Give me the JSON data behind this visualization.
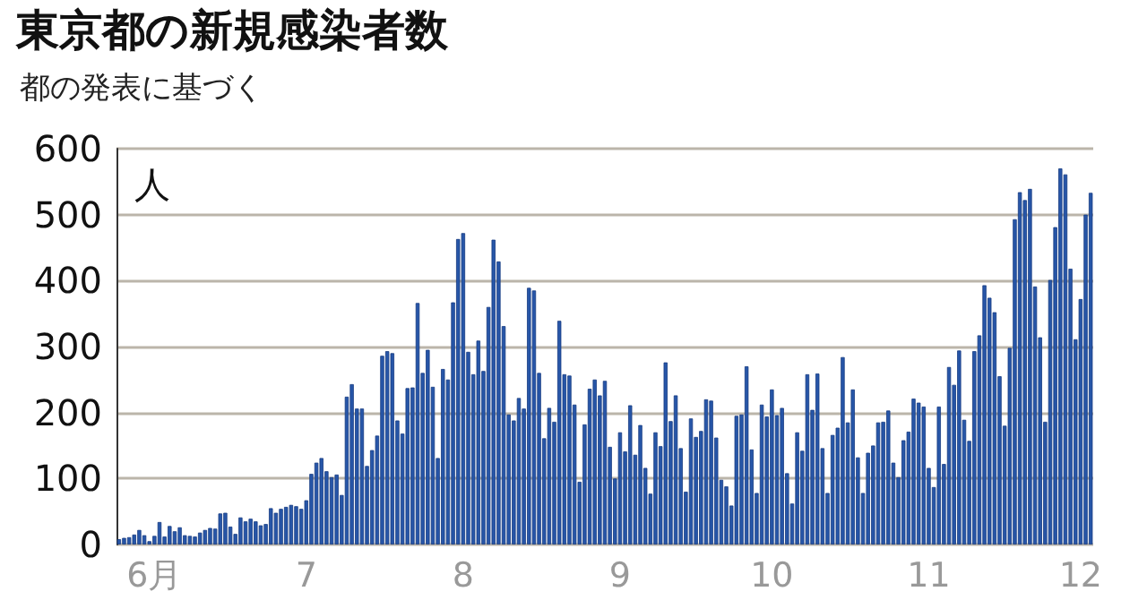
{
  "chart_data": {
    "type": "bar",
    "title": "東京都の新規感染者数",
    "subtitle": "都の発表に基づく",
    "ylabel": "人",
    "categories": [
      null,
      null,
      null,
      null,
      null,
      null,
      null,
      "6月",
      null,
      null,
      null,
      null,
      null,
      null,
      null,
      null,
      null,
      null,
      null,
      null,
      null,
      null,
      null,
      null,
      null,
      null,
      null,
      null,
      null,
      null,
      null,
      null,
      null,
      null,
      null,
      null,
      null,
      "7",
      null,
      null,
      null,
      null,
      null,
      null,
      null,
      null,
      null,
      null,
      null,
      null,
      null,
      null,
      null,
      null,
      null,
      null,
      null,
      null,
      null,
      null,
      null,
      null,
      null,
      null,
      null,
      null,
      null,
      null,
      "8",
      null,
      null,
      null,
      null,
      null,
      null,
      null,
      null,
      null,
      null,
      null,
      null,
      null,
      null,
      null,
      null,
      null,
      null,
      null,
      null,
      null,
      null,
      null,
      null,
      null,
      null,
      null,
      null,
      null,
      null,
      "9",
      null,
      null,
      null,
      null,
      null,
      null,
      null,
      null,
      null,
      null,
      null,
      null,
      null,
      null,
      null,
      null,
      null,
      null,
      null,
      null,
      null,
      null,
      null,
      null,
      null,
      null,
      null,
      null,
      null,
      "10",
      null,
      null,
      null,
      null,
      null,
      null,
      null,
      null,
      null,
      null,
      null,
      null,
      null,
      null,
      null,
      null,
      null,
      null,
      null,
      null,
      null,
      null,
      null,
      null,
      null,
      null,
      null,
      null,
      null,
      null,
      "11",
      null,
      null,
      null,
      null,
      null,
      null,
      null,
      null,
      null,
      null,
      null,
      null,
      null,
      null,
      null,
      null,
      null,
      null,
      null,
      null,
      null,
      null,
      null,
      null,
      null,
      null,
      null,
      null,
      null,
      "12",
      null,
      null
    ],
    "values": [
      8,
      10,
      11,
      15,
      22,
      14,
      5,
      13,
      34,
      12,
      28,
      20,
      26,
      14,
      13,
      12,
      18,
      22,
      25,
      24,
      47,
      48,
      27,
      16,
      41,
      35,
      39,
      35,
      29,
      31,
      55,
      48,
      54,
      57,
      60,
      58,
      54,
      67,
      107,
      124,
      131,
      111,
      102,
      106,
      75,
      224,
      243,
      206,
      206,
      119,
      143,
      165,
      286,
      293,
      290,
      188,
      168,
      237,
      238,
      366,
      260,
      295,
      239,
      131,
      266,
      250,
      367,
      463,
      472,
      292,
      258,
      309,
      263,
      360,
      462,
      429,
      331,
      197,
      188,
      222,
      206,
      389,
      385,
      260,
      161,
      207,
      186,
      339,
      258,
      256,
      212,
      95,
      182,
      236,
      250,
      226,
      248,
      148,
      100,
      170,
      141,
      211,
      136,
      181,
      116,
      77,
      170,
      149,
      276,
      187,
      226,
      146,
      80,
      191,
      163,
      172,
      220,
      218,
      162,
      98,
      88,
      59,
      195,
      197,
      270,
      144,
      78,
      212,
      194,
      235,
      196,
      207,
      108,
      62,
      170,
      142,
      258,
      204,
      259,
      146,
      78,
      166,
      177,
      284,
      185,
      235,
      132,
      78,
      139,
      150,
      185,
      186,
      203,
      124,
      102,
      158,
      171,
      221,
      215,
      209,
      116,
      87,
      209,
      122,
      269,
      242,
      294,
      189,
      157,
      293,
      317,
      393,
      374,
      352,
      255,
      180,
      298,
      493,
      534,
      522,
      539,
      391,
      314,
      186,
      401,
      481,
      570,
      561,
      418,
      311,
      372,
      500,
      533
    ],
    "color": "#2756a8",
    "ylim": [
      0,
      600
    ],
    "yticks": [
      0,
      100,
      200,
      300,
      400,
      500,
      600
    ],
    "grid": "y"
  }
}
